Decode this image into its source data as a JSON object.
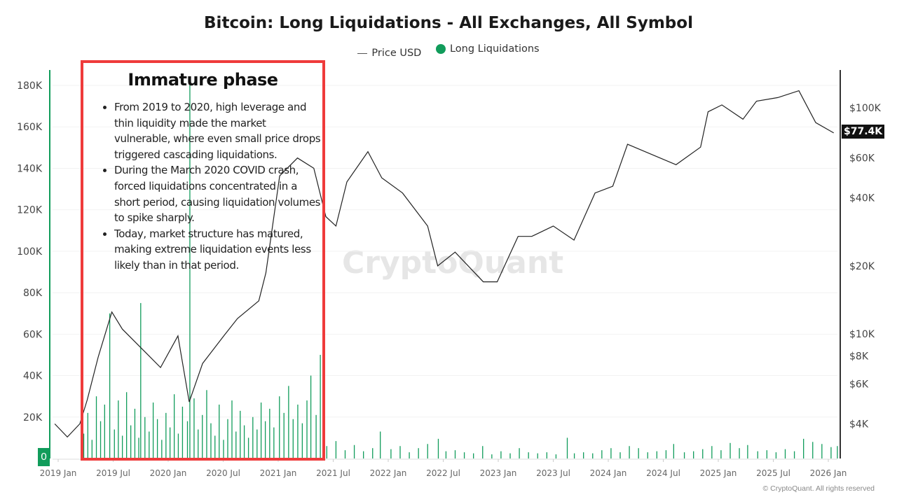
{
  "chart_data": {
    "type": "bar+line",
    "title": "Bitcoin: Long Liquidations - All Exchanges, All Symbol",
    "legend": {
      "placement": "top",
      "entries": [
        {
          "name": "Price USD",
          "color": "#555555",
          "marker": "line"
        },
        {
          "name": "Long Liquidations",
          "color": "#119c5b",
          "marker": "dot"
        }
      ]
    },
    "x_ticks": [
      "2019 Jan",
      "2019 Jul",
      "2020 Jan",
      "2020 Jul",
      "2021 Jan",
      "2021 Jul",
      "2022 Jan",
      "2022 Jul",
      "2023 Jan",
      "2023 Jul",
      "2024 Jan",
      "2024 Jul",
      "2025 Jan",
      "2025 Jul",
      "2026 Jan"
    ],
    "left_axis": {
      "ticks": [
        "0",
        "20K",
        "40K",
        "60K",
        "80K",
        "100K",
        "120K",
        "140K",
        "160K",
        "180K"
      ],
      "ylim": [
        0,
        180000
      ],
      "color": "#119c5b"
    },
    "right_axis": {
      "scale": "log",
      "ticks": [
        [
          "$4K",
          4000
        ],
        [
          "$6K",
          6000
        ],
        [
          "$8K",
          8000
        ],
        [
          "$10K",
          10000
        ],
        [
          "$20K",
          20000
        ],
        [
          "$40K",
          40000
        ],
        [
          "$60K",
          60000
        ],
        [
          "$100K",
          100000
        ]
      ],
      "current_price_label": "$77.4K"
    },
    "zero_badge": "0",
    "grid": true,
    "series": [
      {
        "name": "Long Liquidations",
        "axis": "left",
        "type": "bar",
        "color": "#119c5b",
        "points": [
          [
            "2019-03-25",
            12000
          ],
          [
            "2019-04-08",
            22000
          ],
          [
            "2019-04-22",
            9000
          ],
          [
            "2019-05-06",
            30000
          ],
          [
            "2019-05-20",
            18000
          ],
          [
            "2019-06-03",
            26000
          ],
          [
            "2019-06-20",
            70000
          ],
          [
            "2019-07-05",
            14000
          ],
          [
            "2019-07-18",
            28000
          ],
          [
            "2019-08-01",
            11000
          ],
          [
            "2019-08-15",
            32000
          ],
          [
            "2019-08-29",
            16000
          ],
          [
            "2019-09-12",
            24000
          ],
          [
            "2019-09-25",
            10000
          ],
          [
            "2019-10-01",
            75000
          ],
          [
            "2019-10-15",
            20000
          ],
          [
            "2019-10-29",
            13000
          ],
          [
            "2019-11-12",
            27000
          ],
          [
            "2019-11-26",
            19000
          ],
          [
            "2019-12-10",
            9000
          ],
          [
            "2019-12-24",
            22000
          ],
          [
            "2020-01-07",
            15000
          ],
          [
            "2020-01-21",
            31000
          ],
          [
            "2020-02-04",
            12000
          ],
          [
            "2020-02-18",
            25000
          ],
          [
            "2020-03-04",
            18000
          ],
          [
            "2020-03-12",
            180000
          ],
          [
            "2020-03-26",
            29000
          ],
          [
            "2020-04-09",
            14000
          ],
          [
            "2020-04-23",
            21000
          ],
          [
            "2020-05-07",
            33000
          ],
          [
            "2020-05-21",
            17000
          ],
          [
            "2020-06-04",
            11000
          ],
          [
            "2020-06-18",
            26000
          ],
          [
            "2020-07-02",
            9000
          ],
          [
            "2020-07-16",
            19000
          ],
          [
            "2020-07-30",
            28000
          ],
          [
            "2020-08-13",
            13000
          ],
          [
            "2020-08-27",
            23000
          ],
          [
            "2020-09-10",
            16000
          ],
          [
            "2020-09-24",
            10000
          ],
          [
            "2020-10-08",
            20000
          ],
          [
            "2020-10-22",
            14000
          ],
          [
            "2020-11-05",
            27000
          ],
          [
            "2020-11-19",
            18000
          ],
          [
            "2020-12-03",
            24000
          ],
          [
            "2020-12-17",
            15000
          ],
          [
            "2021-01-05",
            30000
          ],
          [
            "2021-01-20",
            22000
          ],
          [
            "2021-02-05",
            35000
          ],
          [
            "2021-02-20",
            19000
          ],
          [
            "2021-03-05",
            26000
          ],
          [
            "2021-03-20",
            17000
          ],
          [
            "2021-04-05",
            28000
          ],
          [
            "2021-04-18",
            40000
          ],
          [
            "2021-05-05",
            21000
          ],
          [
            "2021-05-19",
            50000
          ],
          [
            "2021-06-10",
            6000
          ],
          [
            "2021-07-10",
            8400
          ],
          [
            "2021-08-10",
            4000
          ],
          [
            "2021-09-10",
            6500
          ],
          [
            "2021-10-10",
            3500
          ],
          [
            "2021-11-10",
            5000
          ],
          [
            "2021-12-05",
            13000
          ],
          [
            "2022-01-10",
            4500
          ],
          [
            "2022-02-10",
            6000
          ],
          [
            "2022-03-10",
            3000
          ],
          [
            "2022-04-10",
            5000
          ],
          [
            "2022-05-10",
            7000
          ],
          [
            "2022-06-15",
            9500
          ],
          [
            "2022-07-10",
            3500
          ],
          [
            "2022-08-10",
            4000
          ],
          [
            "2022-09-10",
            3000
          ],
          [
            "2022-10-10",
            2500
          ],
          [
            "2022-11-10",
            6000
          ],
          [
            "2022-12-10",
            2000
          ],
          [
            "2023-01-10",
            3500
          ],
          [
            "2023-02-10",
            2500
          ],
          [
            "2023-03-10",
            5000
          ],
          [
            "2023-04-10",
            3000
          ],
          [
            "2023-05-10",
            2500
          ],
          [
            "2023-06-10",
            3000
          ],
          [
            "2023-07-10",
            2000
          ],
          [
            "2023-08-17",
            10000
          ],
          [
            "2023-09-10",
            2500
          ],
          [
            "2023-10-10",
            3000
          ],
          [
            "2023-11-10",
            2500
          ],
          [
            "2023-12-10",
            4000
          ],
          [
            "2024-01-10",
            5000
          ],
          [
            "2024-02-10",
            3000
          ],
          [
            "2024-03-10",
            6000
          ],
          [
            "2024-04-10",
            5000
          ],
          [
            "2024-05-10",
            3000
          ],
          [
            "2024-06-10",
            3500
          ],
          [
            "2024-07-10",
            4000
          ],
          [
            "2024-08-05",
            7000
          ],
          [
            "2024-09-10",
            3000
          ],
          [
            "2024-10-10",
            3500
          ],
          [
            "2024-11-10",
            4500
          ],
          [
            "2024-12-10",
            6000
          ],
          [
            "2025-01-10",
            4000
          ],
          [
            "2025-02-10",
            7500
          ],
          [
            "2025-03-10",
            5000
          ],
          [
            "2025-04-07",
            6500
          ],
          [
            "2025-05-10",
            3500
          ],
          [
            "2025-06-10",
            4000
          ],
          [
            "2025-07-10",
            3000
          ],
          [
            "2025-08-10",
            4500
          ],
          [
            "2025-09-10",
            3500
          ],
          [
            "2025-10-10",
            9500
          ],
          [
            "2025-11-10",
            8000
          ],
          [
            "2025-12-10",
            7000
          ],
          [
            "2026-01-10",
            5500
          ],
          [
            "2026-01-31",
            6000
          ]
        ]
      },
      {
        "name": "Price USD",
        "axis": "right",
        "type": "line",
        "color": "#222222",
        "points": [
          [
            "2018-12-20",
            4000
          ],
          [
            "2019-02-01",
            3500
          ],
          [
            "2019-03-12",
            4000
          ],
          [
            "2019-04-06",
            5100
          ],
          [
            "2019-05-12",
            7900
          ],
          [
            "2019-06-27",
            12500
          ],
          [
            "2019-08-01",
            10500
          ],
          [
            "2019-09-28",
            8800
          ],
          [
            "2019-12-06",
            7100
          ],
          [
            "2020-02-03",
            9800
          ],
          [
            "2020-03-10",
            5000
          ],
          [
            "2020-04-24",
            7400
          ],
          [
            "2020-07-03",
            9800
          ],
          [
            "2020-08-18",
            11700
          ],
          [
            "2020-10-28",
            14000
          ],
          [
            "2020-11-21",
            18600
          ],
          [
            "2021-01-06",
            50000
          ],
          [
            "2021-03-04",
            60000
          ],
          [
            "2021-04-28",
            54000
          ],
          [
            "2021-06-07",
            33000
          ],
          [
            "2021-07-10",
            30000
          ],
          [
            "2021-08-16",
            47000
          ],
          [
            "2021-10-25",
            64000
          ],
          [
            "2021-12-10",
            49000
          ],
          [
            "2022-02-18",
            42000
          ],
          [
            "2022-05-10",
            30000
          ],
          [
            "2022-06-13",
            20000
          ],
          [
            "2022-08-10",
            23000
          ],
          [
            "2022-11-12",
            17000
          ],
          [
            "2022-12-28",
            17000
          ],
          [
            "2023-03-06",
            27000
          ],
          [
            "2023-04-21",
            27000
          ],
          [
            "2023-07-01",
            30000
          ],
          [
            "2023-09-09",
            26000
          ],
          [
            "2023-11-18",
            42000
          ],
          [
            "2024-01-16",
            45000
          ],
          [
            "2024-03-04",
            69000
          ],
          [
            "2024-05-01",
            64000
          ],
          [
            "2024-08-13",
            56000
          ],
          [
            "2024-11-03",
            67000
          ],
          [
            "2024-11-28",
            96000
          ],
          [
            "2025-01-13",
            103000
          ],
          [
            "2025-03-22",
            89000
          ],
          [
            "2025-05-06",
            107000
          ],
          [
            "2025-07-16",
            111000
          ],
          [
            "2025-09-25",
            119000
          ],
          [
            "2025-11-20",
            86000
          ],
          [
            "2026-01-19",
            77400
          ]
        ]
      }
    ]
  },
  "annotation": {
    "title": "Immature phase",
    "border_color": "#ef3b3b",
    "bullets": [
      "From 2019 to 2020, high leverage and thin liquidity made the market vulnerable, where even small price drops triggered cascading liquidations.",
      "During the March 2020 COVID crash, forced liquidations concentrated in a short period, causing liquidation volumes to spike sharply.",
      "Today, market structure has matured, making extreme liquidation events less likely than in that period."
    ]
  },
  "watermark": "CryptoQuant",
  "footer": "© CryptoQuant. All rights reserved"
}
